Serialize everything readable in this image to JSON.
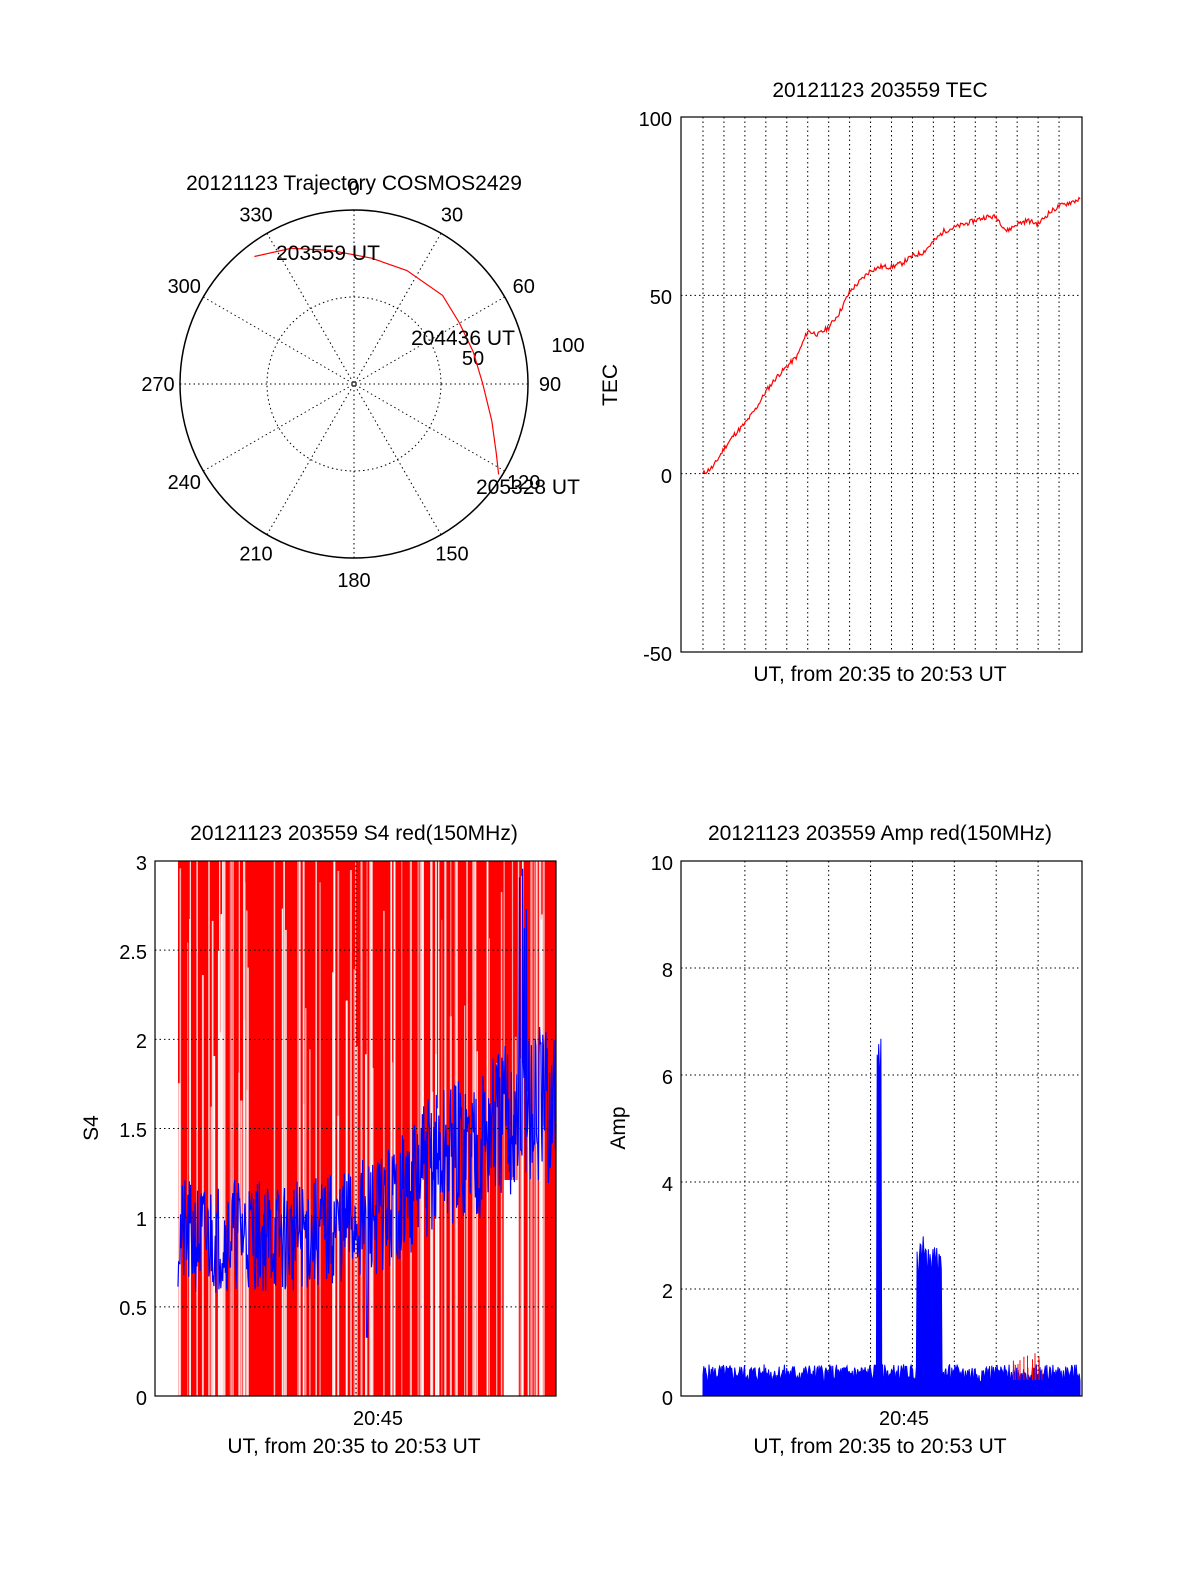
{
  "chart_data": [
    {
      "type": "polar",
      "title": "20121123 Trajectory COSMOS2429",
      "azimuth_labels": [
        "0",
        "30",
        "60",
        "90",
        "120",
        "150",
        "180",
        "210",
        "240",
        "270",
        "300",
        "330"
      ],
      "radial_labels": [
        "50",
        "100"
      ],
      "radial_max": 100,
      "trajectory_color": "#ff0000",
      "trajectory": [
        {
          "azimuth": 322,
          "zenith": 93
        },
        {
          "azimuth": 335,
          "zenith": 86
        },
        {
          "azimuth": 350,
          "zenith": 78
        },
        {
          "azimuth": 8,
          "zenith": 73
        },
        {
          "azimuth": 25,
          "zenith": 72
        },
        {
          "azimuth": 45,
          "zenith": 72
        },
        {
          "azimuth": 60,
          "zenith": 70
        },
        {
          "azimuth": 75,
          "zenith": 71
        },
        {
          "azimuth": 90,
          "zenith": 74
        },
        {
          "azimuth": 105,
          "zenith": 82
        },
        {
          "azimuth": 116,
          "zenith": 91
        },
        {
          "azimuth": 122,
          "zenith": 98
        }
      ],
      "annotations": [
        {
          "text": "203559 UT",
          "azimuth": 322,
          "zenith": 93
        },
        {
          "text": "204436 UT",
          "azimuth": 60,
          "zenith": 70
        },
        {
          "text": "205328 UT",
          "azimuth": 122,
          "zenith": 98
        }
      ]
    },
    {
      "type": "line",
      "title": "20121123 203559 TEC",
      "xlabel": "UT, from 20:35 to 20:53 UT",
      "ylabel": "TEC",
      "ylim": [
        -50,
        100
      ],
      "yticks": [
        "100",
        "50",
        "0",
        "-50"
      ],
      "xlim_minutes": [
        0,
        18
      ],
      "color": "#ff0000",
      "series": [
        {
          "values": [
            [
              0.0,
              0
            ],
            [
              0.5,
              2
            ],
            [
              1.0,
              7
            ],
            [
              1.5,
              11
            ],
            [
              2.0,
              14
            ],
            [
              2.5,
              18
            ],
            [
              3.0,
              23
            ],
            [
              3.5,
              27
            ],
            [
              4.0,
              30
            ],
            [
              4.5,
              33
            ],
            [
              5.0,
              40
            ],
            [
              5.5,
              39
            ],
            [
              6.0,
              41
            ],
            [
              6.5,
              45
            ],
            [
              7.0,
              51
            ],
            [
              7.5,
              54
            ],
            [
              8.0,
              57
            ],
            [
              8.5,
              58
            ],
            [
              9.0,
              58
            ],
            [
              9.5,
              59
            ],
            [
              10.0,
              61
            ],
            [
              10.5,
              62
            ],
            [
              11.0,
              65
            ],
            [
              11.5,
              68
            ],
            [
              12.0,
              69
            ],
            [
              12.5,
              70
            ],
            [
              13.0,
              71
            ],
            [
              13.5,
              72
            ],
            [
              14.0,
              72
            ],
            [
              14.5,
              68
            ],
            [
              15.0,
              70
            ],
            [
              15.5,
              71
            ],
            [
              16.0,
              70
            ],
            [
              16.5,
              73
            ],
            [
              17.0,
              75
            ],
            [
              17.5,
              76
            ],
            [
              18.0,
              77
            ]
          ]
        }
      ]
    },
    {
      "type": "line",
      "title": "20121123 203559 S4 red(150MHz)",
      "xlabel": "UT, from 20:35 to 20:53 UT",
      "ylabel": "S4",
      "ylim": [
        0,
        3
      ],
      "yticks": [
        "0",
        "0.5",
        "1",
        "1.5",
        "2",
        "2.5",
        "3"
      ],
      "xtick_label": "20:45",
      "xlim_minutes": [
        0,
        18
      ],
      "series": [
        {
          "color": "#ff0000",
          "note_style": "filled vertical spikes spanning most of the axis"
        },
        {
          "color": "#0000ff",
          "values": [
            [
              0.0,
              0.9
            ],
            [
              1.0,
              0.88
            ],
            [
              2.0,
              0.9
            ],
            [
              3.0,
              0.92
            ],
            [
              4.0,
              0.9
            ],
            [
              5.0,
              0.88
            ],
            [
              6.0,
              0.9
            ],
            [
              7.0,
              0.92
            ],
            [
              8.0,
              0.95
            ],
            [
              9.0,
              1.0
            ],
            [
              10.0,
              1.05
            ],
            [
              11.0,
              1.15
            ],
            [
              12.0,
              1.3
            ],
            [
              13.0,
              1.35
            ],
            [
              14.0,
              1.4
            ],
            [
              15.0,
              1.5
            ],
            [
              16.0,
              1.55
            ],
            [
              17.0,
              1.6
            ],
            [
              18.0,
              1.6
            ]
          ]
        }
      ]
    },
    {
      "type": "line",
      "title": "20121123 203559 Amp red(150MHz)",
      "xlabel": "UT, from 20:35 to 20:53 UT",
      "ylabel": "Amp",
      "ylim": [
        0,
        10
      ],
      "yticks": [
        "0",
        "2",
        "4",
        "6",
        "8",
        "10"
      ],
      "xtick_label": "20:45",
      "xlim_minutes": [
        0,
        18
      ],
      "series": [
        {
          "color": "#0000ff",
          "baseline": 0.35,
          "spikes": [
            {
              "x": 8.4,
              "y": 6.7
            },
            {
              "x": 10.5,
              "y": 3.0
            },
            {
              "x": 11.1,
              "y": 2.8
            }
          ]
        },
        {
          "color": "#ff0000",
          "note_style": "mostly hidden beneath blue"
        }
      ]
    }
  ]
}
